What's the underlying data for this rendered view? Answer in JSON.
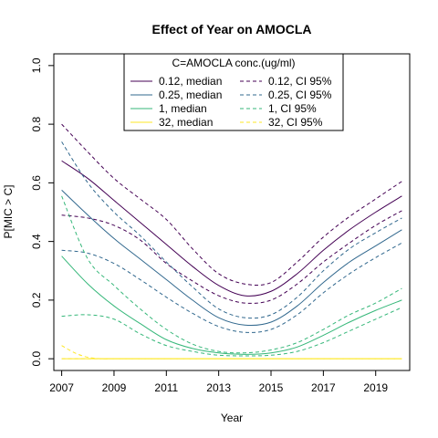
{
  "chart_data": {
    "type": "line",
    "title": "Effect of Year on AMOCLA",
    "xlabel": "Year",
    "ylabel": "P[MIC > C]",
    "xlim": [
      2006.7,
      2020.3
    ],
    "ylim": [
      -0.04,
      1.04
    ],
    "x_ticks": [
      2007,
      2009,
      2011,
      2013,
      2015,
      2017,
      2019
    ],
    "y_ticks": [
      0.0,
      0.2,
      0.4,
      0.6,
      0.8,
      1.0
    ],
    "y_tick_labels": [
      "0.0",
      "0.2",
      "0.4",
      "0.6",
      "0.8",
      "1.0"
    ],
    "grid": false,
    "legend": {
      "title": "C=AMOCLA conc.(ug/ml)",
      "position": "top-center",
      "columns": 2,
      "entries": [
        {
          "label": "0.12, median",
          "color": "#440154",
          "dash": false
        },
        {
          "label": "0.12, CI 95%",
          "color": "#440154",
          "dash": true
        },
        {
          "label": "0.25, median",
          "color": "#31688e",
          "dash": false
        },
        {
          "label": "0.25, CI 95%",
          "color": "#31688e",
          "dash": true
        },
        {
          "label": "1, median",
          "color": "#35b779",
          "dash": false
        },
        {
          "label": "1, CI 95%",
          "color": "#35b779",
          "dash": true
        },
        {
          "label": "32, median",
          "color": "#fde725",
          "dash": false
        },
        {
          "label": "32, CI 95%",
          "color": "#fde725",
          "dash": true
        }
      ]
    },
    "x": [
      2007,
      2008,
      2009,
      2010,
      2011,
      2012,
      2013,
      2014,
      2015,
      2016,
      2017,
      2018,
      2019,
      2020
    ],
    "series": [
      {
        "name": "0.12, median",
        "color": "#440154",
        "dash": false,
        "values": [
          0.675,
          0.615,
          0.54,
          0.465,
          0.39,
          0.315,
          0.25,
          0.215,
          0.23,
          0.29,
          0.37,
          0.44,
          0.5,
          0.555
        ]
      },
      {
        "name": "0.12, CI 95%",
        "color": "#440154",
        "dash": true,
        "values": [
          0.8,
          0.705,
          0.615,
          0.545,
          0.475,
          0.375,
          0.29,
          0.255,
          0.26,
          0.33,
          0.415,
          0.485,
          0.545,
          0.605
        ]
      },
      {
        "name": "0.12, CI 95%",
        "color": "#440154",
        "dash": true,
        "values": [
          0.49,
          0.48,
          0.455,
          0.405,
          0.325,
          0.265,
          0.215,
          0.19,
          0.2,
          0.255,
          0.33,
          0.395,
          0.455,
          0.505
        ]
      },
      {
        "name": "0.25, median",
        "color": "#31688e",
        "dash": false,
        "values": [
          0.575,
          0.49,
          0.41,
          0.34,
          0.27,
          0.2,
          0.14,
          0.115,
          0.125,
          0.18,
          0.26,
          0.33,
          0.385,
          0.44
        ]
      },
      {
        "name": "0.25, CI 95%",
        "color": "#31688e",
        "dash": true,
        "values": [
          0.74,
          0.6,
          0.5,
          0.42,
          0.33,
          0.245,
          0.17,
          0.14,
          0.15,
          0.21,
          0.3,
          0.375,
          0.43,
          0.48
        ]
      },
      {
        "name": "0.25, CI 95%",
        "color": "#31688e",
        "dash": true,
        "values": [
          0.37,
          0.36,
          0.325,
          0.27,
          0.21,
          0.155,
          0.11,
          0.09,
          0.1,
          0.15,
          0.225,
          0.29,
          0.345,
          0.395
        ]
      },
      {
        "name": "1, median",
        "color": "#35b779",
        "dash": false,
        "values": [
          0.35,
          0.255,
          0.18,
          0.12,
          0.065,
          0.035,
          0.02,
          0.015,
          0.02,
          0.04,
          0.08,
          0.125,
          0.165,
          0.2
        ]
      },
      {
        "name": "1, CI 95%",
        "color": "#35b779",
        "dash": true,
        "values": [
          0.555,
          0.34,
          0.25,
          0.17,
          0.1,
          0.05,
          0.025,
          0.02,
          0.03,
          0.055,
          0.1,
          0.15,
          0.19,
          0.24
        ]
      },
      {
        "name": "1, CI 95%",
        "color": "#35b779",
        "dash": true,
        "values": [
          0.145,
          0.15,
          0.135,
          0.085,
          0.045,
          0.025,
          0.012,
          0.01,
          0.012,
          0.025,
          0.055,
          0.095,
          0.135,
          0.175
        ]
      },
      {
        "name": "32, median",
        "color": "#fde725",
        "dash": false,
        "values": [
          0.0,
          0.0,
          0.0,
          0.0,
          0.0,
          0.0,
          0.0,
          0.0,
          0.0,
          0.0,
          0.0,
          0.0,
          0.0,
          0.0
        ]
      },
      {
        "name": "32, CI 95%",
        "color": "#fde725",
        "dash": true,
        "x": [
          2007,
          2007.5,
          2008,
          2008.5,
          2009,
          2010,
          2012,
          2014,
          2016,
          2018,
          2020
        ],
        "values": [
          0.045,
          0.02,
          0.005,
          0.0,
          0.0,
          0.0,
          0.0,
          0.0,
          0.0,
          0.0,
          0.0
        ]
      },
      {
        "name": "32, CI 95%",
        "color": "#fde725",
        "dash": true,
        "values": [
          0.0,
          0.0,
          0.0,
          0.0,
          0.0,
          0.0,
          0.0,
          0.0,
          0.0,
          0.0,
          0.0,
          0.0,
          0.0,
          0.0
        ]
      }
    ]
  }
}
